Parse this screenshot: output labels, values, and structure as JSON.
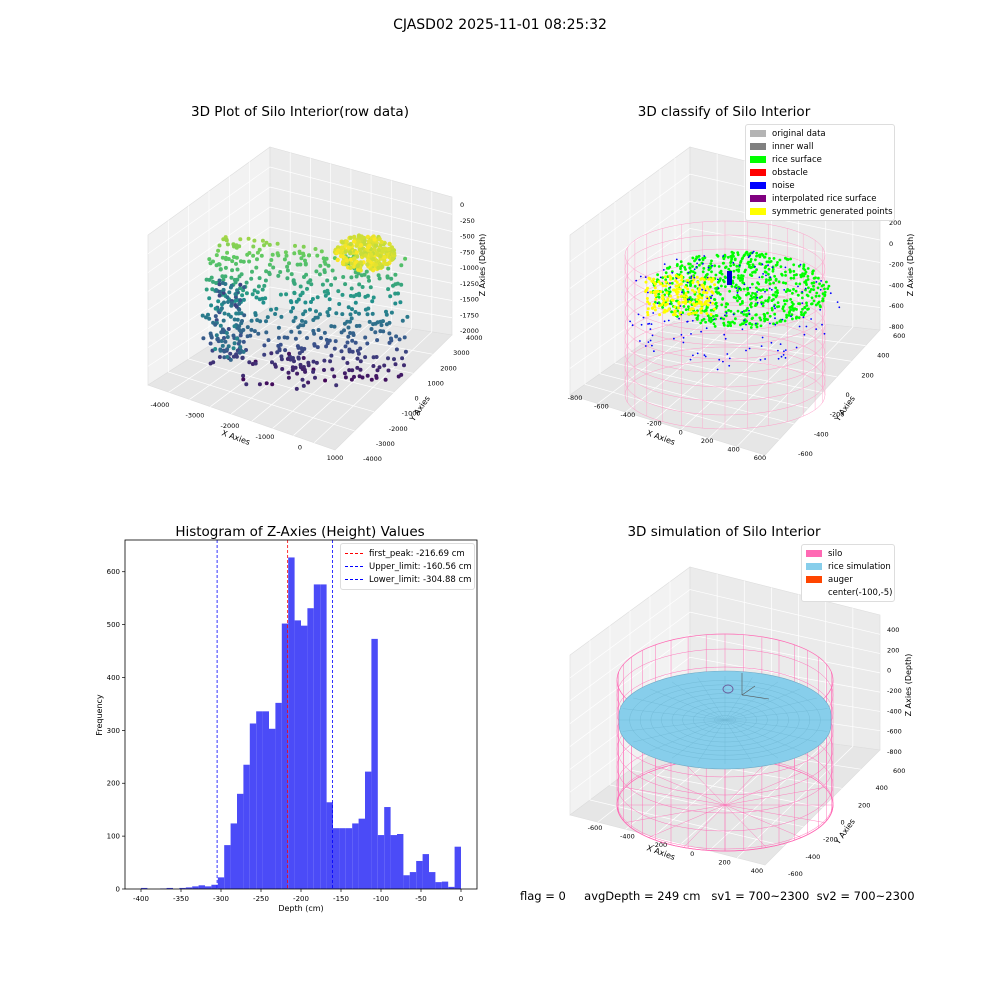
{
  "figure": {
    "suptitle": "CJASD02 2025-11-01 08:25:32",
    "status": {
      "flag": "flag = 0",
      "avg_depth": "avgDepth = 249 cm",
      "sv1": "sv1 = 700~2300",
      "sv2": "sv2 = 700~2300"
    }
  },
  "colors": {
    "histogram_bar": "#4b4bf7",
    "first_peak_line": "#ff0000",
    "limit_lines": "#0000ff",
    "silo": "#ff69b4",
    "rice_simulation": "#87ceeb",
    "auger": "#ff4500"
  },
  "chart_data": [
    {
      "type": "scatter",
      "projection": "3d",
      "title": "3D Plot of Silo Interior(row data)",
      "xlabel": "X Axies",
      "ylabel": "Y Axies",
      "zlabel": "Z Axies (Depth)",
      "x_ticks": [
        "-4000",
        "-3000",
        "-2000",
        "-1000",
        "0",
        "1000"
      ],
      "y_ticks": [
        "-4000",
        "-3000",
        "-2000",
        "-1000",
        "0",
        "1000",
        "2000",
        "3000",
        "4000"
      ],
      "z_ticks": [
        "0",
        "-250",
        "-500",
        "-750",
        "-1000",
        "-1250",
        "-1500",
        "-1750",
        "-2000"
      ],
      "colormap": "viridis",
      "grid": true
    },
    {
      "type": "scatter",
      "projection": "3d",
      "title": "3D classify of Silo Interior",
      "xlabel": "X Axies",
      "ylabel": "Y Axies",
      "zlabel": "Z Axies (Depth)",
      "x_ticks": [
        "-800",
        "-600",
        "-400",
        "-200",
        "0",
        "200",
        "400",
        "600"
      ],
      "y_ticks": [
        "-600",
        "-400",
        "-200",
        "0",
        "200",
        "400",
        "600"
      ],
      "z_ticks": [
        "200",
        "0",
        "-200",
        "-400",
        "-600",
        "-800"
      ],
      "legend": {
        "placement": "top-right",
        "entries": [
          {
            "label": "original data",
            "color": "#b4b4b4"
          },
          {
            "label": "inner wall",
            "color": "#808080"
          },
          {
            "label": "rice surface",
            "color": "#00ff00"
          },
          {
            "label": "obstacle",
            "color": "#ff0000"
          },
          {
            "label": "noise",
            "color": "#0000ff"
          },
          {
            "label": "interpolated rice surface",
            "color": "#800080"
          },
          {
            "label": "symmetric generated points",
            "color": "#ffff00"
          }
        ]
      },
      "grid": true
    },
    {
      "type": "bar",
      "title": "Histogram of Z-Axies (Height) Values",
      "xlabel": "Depth (cm)",
      "ylabel": "Frequency",
      "xlim": [
        -420,
        20
      ],
      "ylim": [
        0,
        660
      ],
      "x_ticks": [
        -400,
        -350,
        -300,
        -250,
        -200,
        -150,
        -100,
        -50,
        0
      ],
      "y_ticks": [
        0,
        100,
        200,
        300,
        400,
        500,
        600
      ],
      "bin_width": 8,
      "bins": [
        {
          "x": -400,
          "y": 2
        },
        {
          "x": -392,
          "y": 0
        },
        {
          "x": -384,
          "y": 0
        },
        {
          "x": -376,
          "y": 1
        },
        {
          "x": -368,
          "y": 2
        },
        {
          "x": -360,
          "y": 0
        },
        {
          "x": -352,
          "y": 2
        },
        {
          "x": -344,
          "y": 3
        },
        {
          "x": -336,
          "y": 5
        },
        {
          "x": -328,
          "y": 7
        },
        {
          "x": -320,
          "y": 5
        },
        {
          "x": -312,
          "y": 8
        },
        {
          "x": -304,
          "y": 22
        },
        {
          "x": -296,
          "y": 83
        },
        {
          "x": -288,
          "y": 124
        },
        {
          "x": -280,
          "y": 180
        },
        {
          "x": -272,
          "y": 235
        },
        {
          "x": -264,
          "y": 313
        },
        {
          "x": -256,
          "y": 336
        },
        {
          "x": -248,
          "y": 336
        },
        {
          "x": -240,
          "y": 303
        },
        {
          "x": -232,
          "y": 352
        },
        {
          "x": -224,
          "y": 502
        },
        {
          "x": -216,
          "y": 627
        },
        {
          "x": -208,
          "y": 508
        },
        {
          "x": -200,
          "y": 498
        },
        {
          "x": -192,
          "y": 531
        },
        {
          "x": -184,
          "y": 576
        },
        {
          "x": -176,
          "y": 576
        },
        {
          "x": -168,
          "y": 164
        },
        {
          "x": -160,
          "y": 115
        },
        {
          "x": -152,
          "y": 115
        },
        {
          "x": -144,
          "y": 115
        },
        {
          "x": -136,
          "y": 124
        },
        {
          "x": -128,
          "y": 133
        },
        {
          "x": -120,
          "y": 222
        },
        {
          "x": -112,
          "y": 473
        },
        {
          "x": -104,
          "y": 102
        },
        {
          "x": -96,
          "y": 155
        },
        {
          "x": -88,
          "y": 102
        },
        {
          "x": -80,
          "y": 104
        },
        {
          "x": -72,
          "y": 26
        },
        {
          "x": -64,
          "y": 32
        },
        {
          "x": -56,
          "y": 53
        },
        {
          "x": -48,
          "y": 66
        },
        {
          "x": -40,
          "y": 32
        },
        {
          "x": -32,
          "y": 13
        },
        {
          "x": -24,
          "y": 14
        },
        {
          "x": -16,
          "y": 4
        },
        {
          "x": -8,
          "y": 80
        }
      ],
      "vlines": [
        {
          "label": "first_peak: -216.69 cm",
          "x": -216.69,
          "color": "#ff0000"
        },
        {
          "label": "Upper_limit: -160.56 cm",
          "x": -160.56,
          "color": "#0000ff"
        },
        {
          "label": "Lower_limit: -304.88 cm",
          "x": -304.88,
          "color": "#0000ff"
        }
      ],
      "legend_placement": "top-right",
      "grid": false
    },
    {
      "type": "surface",
      "projection": "3d",
      "title": "3D simulation of Silo Interior",
      "xlabel": "X Axies",
      "ylabel": "Y Axies",
      "zlabel": "Z Axies (Depth)",
      "x_ticks": [
        "-600",
        "-400",
        "-200",
        "0",
        "200",
        "400"
      ],
      "y_ticks": [
        "-600",
        "-400",
        "-200",
        "0",
        "200",
        "400",
        "600"
      ],
      "z_ticks": [
        "400",
        "200",
        "0",
        "-200",
        "-400",
        "-600",
        "-800"
      ],
      "legend": {
        "placement": "top-right",
        "entries": [
          {
            "label": "silo",
            "color": "#ff69b4"
          },
          {
            "label": "rice simulation",
            "color": "#87ceeb"
          },
          {
            "label": "auger",
            "color": "#ff4500"
          },
          {
            "label": "center(-100,-5)",
            "color": ""
          }
        ]
      },
      "grid": true
    }
  ]
}
